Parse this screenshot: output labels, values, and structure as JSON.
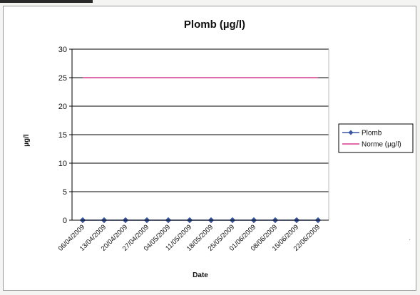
{
  "chart_data": {
    "type": "line",
    "title": "Plomb (µg/l)",
    "xlabel": "Date",
    "ylabel": "µg/l",
    "ylim": [
      0,
      30
    ],
    "y_ticks": [
      0,
      5,
      10,
      15,
      20,
      25,
      30
    ],
    "grid": true,
    "legend_position": "right",
    "categories": [
      "06/04/2009",
      "13/04/2009",
      "20/04/2009",
      "27/04/2009",
      "04/05/2009",
      "11/05/2009",
      "18/05/2009",
      "25/05/2009",
      "01/06/2009",
      "08/06/2009",
      "15/06/2009",
      "22/06/2009"
    ],
    "series": [
      {
        "name": "Plomb",
        "color": "#3a57a4",
        "marker": "diamond",
        "values": [
          0,
          0,
          0,
          0,
          0,
          0,
          0,
          0,
          0,
          0,
          0,
          0
        ]
      },
      {
        "name": "Norme (µg/l)",
        "color": "#d63c8f",
        "marker": "none",
        "values": [
          25,
          25,
          25,
          25,
          25,
          25,
          25,
          25,
          25,
          25,
          25,
          25
        ]
      }
    ]
  }
}
